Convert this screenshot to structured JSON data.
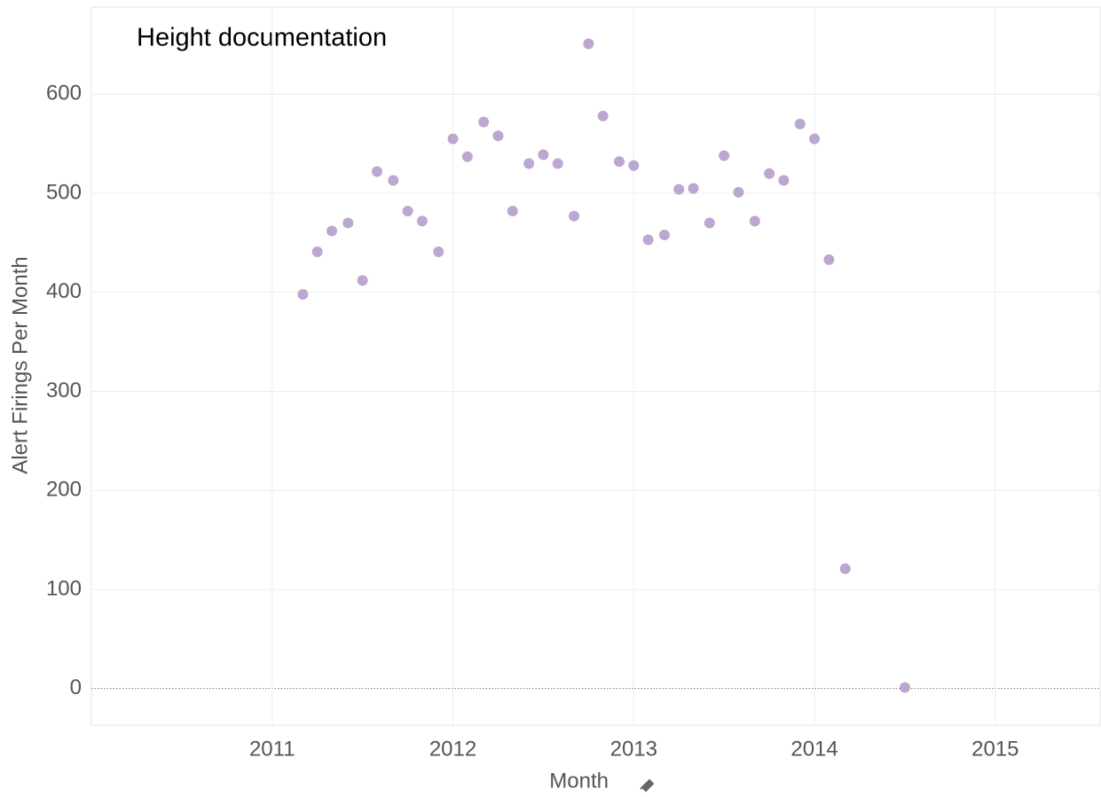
{
  "chart_data": {
    "type": "scatter",
    "title": "Height documentation",
    "x_label": "Month",
    "y_label": "Alert Firings Per Month",
    "color": "#bba7cf",
    "grid": true,
    "xlim": [
      2010.0,
      2015.58
    ],
    "ylim": [
      -37,
      688
    ],
    "xticks": [
      2011,
      2012,
      2013,
      2014,
      2015
    ],
    "yticks": [
      0,
      100,
      200,
      300,
      400,
      500,
      600
    ],
    "x": [
      2011.17,
      2011.25,
      2011.33,
      2011.42,
      2011.5,
      2011.58,
      2011.67,
      2011.75,
      2011.83,
      2011.92,
      2012.0,
      2012.08,
      2012.17,
      2012.25,
      2012.33,
      2012.42,
      2012.5,
      2012.58,
      2012.67,
      2012.75,
      2012.83,
      2012.92,
      2013.0,
      2013.08,
      2013.17,
      2013.25,
      2013.33,
      2013.42,
      2013.5,
      2013.58,
      2013.67,
      2013.75,
      2013.83,
      2013.92,
      2014.0,
      2014.08,
      2014.17,
      2014.5
    ],
    "values": [
      398,
      441,
      462,
      470,
      412,
      522,
      513,
      482,
      472,
      441,
      555,
      537,
      572,
      558,
      482,
      530,
      539,
      530,
      477,
      651,
      578,
      532,
      528,
      453,
      458,
      504,
      505,
      470,
      538,
      501,
      472,
      520,
      513,
      570,
      555,
      433,
      121,
      1
    ]
  }
}
